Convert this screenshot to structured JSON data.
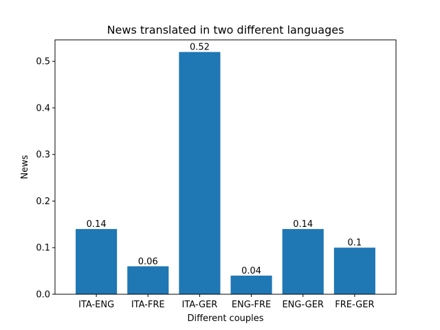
{
  "chart_data": {
    "type": "bar",
    "title": "News translated in two different languages",
    "xlabel": "Different couples",
    "ylabel": "News",
    "categories": [
      "ITA-ENG",
      "ITA-FRE",
      "ITA-GER",
      "ENG-FRE",
      "ENG-GER",
      "FRE-GER"
    ],
    "values": [
      0.14,
      0.06,
      0.52,
      0.04,
      0.14,
      0.1
    ],
    "data_labels": [
      "0.14",
      "0.06",
      "0.52",
      "0.04",
      "0.14",
      "0.1"
    ],
    "ylim": [
      0,
      0.546
    ],
    "yticks": [
      0,
      0.1,
      0.2,
      0.3,
      0.4,
      0.5
    ],
    "ytick_labels": [
      "0.0",
      "0.1",
      "0.2",
      "0.3",
      "0.4",
      "0.5"
    ],
    "bar_color": "#1f77b4",
    "grid": false,
    "legend": "none"
  }
}
